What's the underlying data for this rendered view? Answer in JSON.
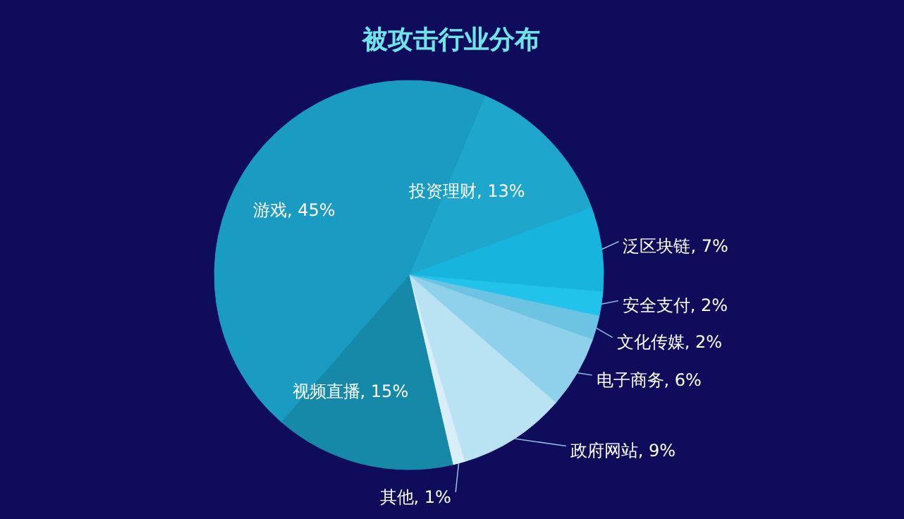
{
  "chart_data": {
    "type": "pie",
    "title": "被攻击行业分布",
    "categories": [
      "投资理财",
      "泛区块链",
      "安全支付",
      "文化传媒",
      "电子商务",
      "政府网站",
      "其他",
      "视频直播",
      "游戏"
    ],
    "values": [
      13,
      7,
      2,
      2,
      6,
      9,
      1,
      15,
      45
    ],
    "value_labels": [
      ", 13%",
      ", 7%",
      ", 2%",
      ", 2%",
      ", 6%",
      ", 9%",
      ", 1%",
      ", 15%",
      ", 45%"
    ],
    "colors": [
      "#1fa6cc",
      "#17b5de",
      "#22c3ea",
      "#6cc4e2",
      "#8fd0ea",
      "#b9e2f3",
      "#d8eef8",
      "#1689a8",
      "#1a9bc1"
    ]
  }
}
